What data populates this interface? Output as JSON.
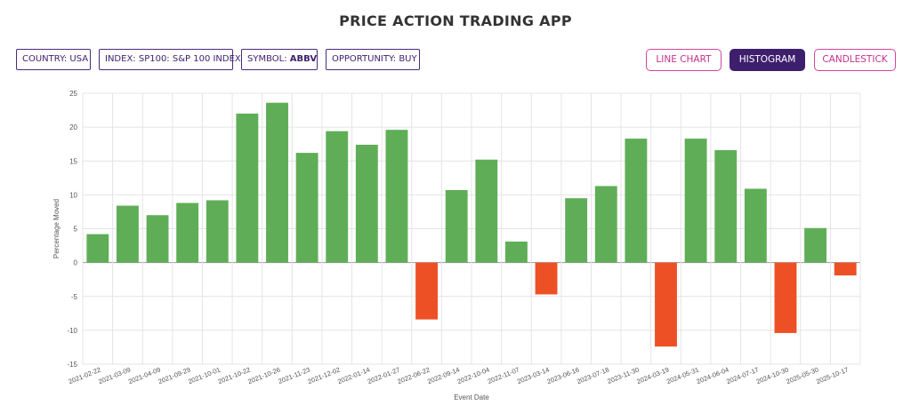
{
  "header": {
    "title": "PRICE ACTION TRADING APP"
  },
  "filters": {
    "country": "COUNTRY: USA",
    "index": "INDEX: SP100: S&P 100 INDEX",
    "symbol_prefix": "SYMBOL: ",
    "symbol_value": "ABBV",
    "opportunity": "OPPORTUNITY: BUY"
  },
  "view_buttons": {
    "line": "LINE CHART",
    "histogram": "HISTOGRAM",
    "candlestick": "CANDLESTICK",
    "active": "histogram"
  },
  "colors": {
    "positive": "#5fae57",
    "negative": "#ee5025",
    "accent": "#3d1f6d",
    "outline": "#d4449c"
  },
  "chart_data": {
    "type": "bar",
    "xlabel": "Event Date",
    "ylabel": "Percentage Moved",
    "ylim": [
      -15,
      25
    ],
    "yticks": [
      -15,
      -10,
      -5,
      0,
      5,
      10,
      15,
      20,
      25
    ],
    "grid": true,
    "categories": [
      "2021-02-22",
      "2021-03-09",
      "2021-04-09",
      "2021-09-29",
      "2021-10-01",
      "2021-10-22",
      "2021-10-26",
      "2021-11-23",
      "2021-12-02",
      "2022-01-14",
      "2022-01-27",
      "2022-06-22",
      "2022-09-14",
      "2022-10-04",
      "2022-11-07",
      "2023-03-14",
      "2023-06-16",
      "2023-07-18",
      "2023-11-30",
      "2024-03-19",
      "2024-05-31",
      "2024-06-04",
      "2024-07-17",
      "2024-10-30",
      "2025-05-30",
      "2025-10-17"
    ],
    "values": [
      4.2,
      8.4,
      7.0,
      8.8,
      9.2,
      22.0,
      23.6,
      16.2,
      19.4,
      17.4,
      19.6,
      -8.4,
      10.7,
      15.2,
      3.1,
      -4.7,
      9.5,
      11.3,
      18.3,
      -12.4,
      18.3,
      16.6,
      10.9,
      -10.4,
      5.1,
      -1.9
    ]
  }
}
